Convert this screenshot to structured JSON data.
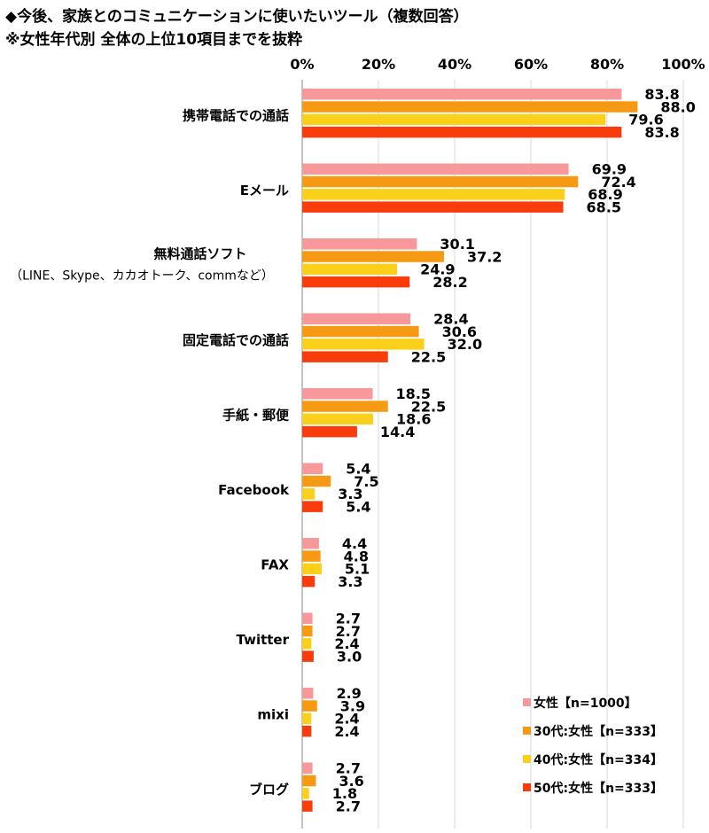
{
  "title": "◆今後、家族とのコミュニケーションに使いたいツール（複数回答）",
  "subtitle": "※女性年代別 全体の上位10項目までを抜粋",
  "colors": [
    "#f7999b",
    "#f79a13",
    "#fad01b",
    "#f83c0c"
  ],
  "chart_data": {
    "type": "bar",
    "orientation": "horizontal",
    "xlim": [
      0,
      100
    ],
    "x_ticks": [
      "0%",
      "20%",
      "40%",
      "60%",
      "80%",
      "100%"
    ],
    "grid": true,
    "legend_position": "bottom-right",
    "categories": [
      {
        "label": "携帯電話での通話",
        "sub": ""
      },
      {
        "label": "Eメール",
        "sub": ""
      },
      {
        "label": "無料通話ソフト",
        "sub": "（LINE、Skype、カカオトーク、commなど）"
      },
      {
        "label": "固定電話での通話",
        "sub": ""
      },
      {
        "label": "手紙・郵便",
        "sub": ""
      },
      {
        "label": "Facebook",
        "sub": ""
      },
      {
        "label": "FAX",
        "sub": ""
      },
      {
        "label": "Twitter",
        "sub": ""
      },
      {
        "label": "mixi",
        "sub": ""
      },
      {
        "label": "ブログ",
        "sub": ""
      }
    ],
    "series": [
      {
        "name": "女性【n=1000】",
        "values": [
          83.8,
          69.9,
          30.1,
          28.4,
          18.5,
          5.4,
          4.4,
          2.7,
          2.9,
          2.7
        ]
      },
      {
        "name": "30代:女性【n=333】",
        "values": [
          88.0,
          72.4,
          37.2,
          30.6,
          22.5,
          7.5,
          4.8,
          2.7,
          3.9,
          3.6
        ]
      },
      {
        "name": "40代:女性【n=334】",
        "values": [
          79.6,
          68.9,
          24.9,
          32.0,
          18.6,
          3.3,
          5.1,
          2.4,
          2.4,
          1.8
        ]
      },
      {
        "name": "50代:女性【n=333】",
        "values": [
          83.8,
          68.5,
          28.2,
          22.5,
          14.4,
          5.4,
          3.3,
          3.0,
          2.4,
          2.7
        ]
      }
    ]
  }
}
